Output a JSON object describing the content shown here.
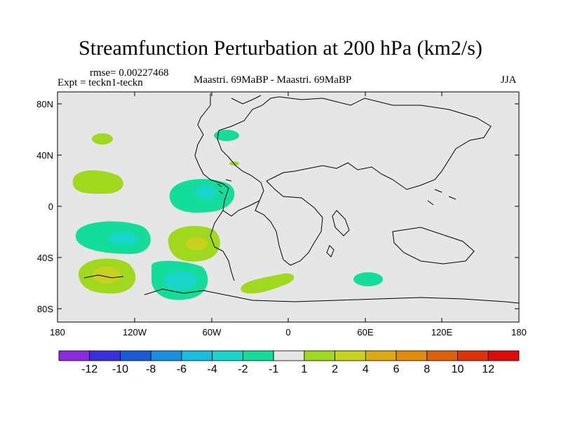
{
  "header": {
    "title": "Streamfunction Perturbation at 200 hPa (km2/s)",
    "rmse": "rmse= 0.00227468",
    "expt": "Expt = teckn1-teckn",
    "center_label": "Maastri.  69MaBP - Maastri.  69MaBP",
    "season": "JJA"
  },
  "map": {
    "background_color": "#e6e6e6",
    "lat_labels": [
      "80N",
      "40N",
      "0",
      "40S",
      "80S"
    ],
    "lon_labels": [
      "180",
      "120W",
      "60W",
      "0",
      "60E",
      "120E",
      "180"
    ]
  },
  "colorbar": {
    "colors": [
      "#8a2be2",
      "#3a2fe0",
      "#1a5ad6",
      "#1a8fe0",
      "#19bde0",
      "#19d6c8",
      "#14dc9b",
      "#e6e6e6",
      "#a0d81e",
      "#c8d21e",
      "#dcaa14",
      "#e08c0a",
      "#e0600a",
      "#e0320a",
      "#e00a0a"
    ],
    "labels": [
      "-12",
      "-10",
      "-8",
      "-6",
      "-4",
      "-2",
      "-1",
      "1",
      "2",
      "4",
      "6",
      "8",
      "10",
      "12"
    ]
  }
}
